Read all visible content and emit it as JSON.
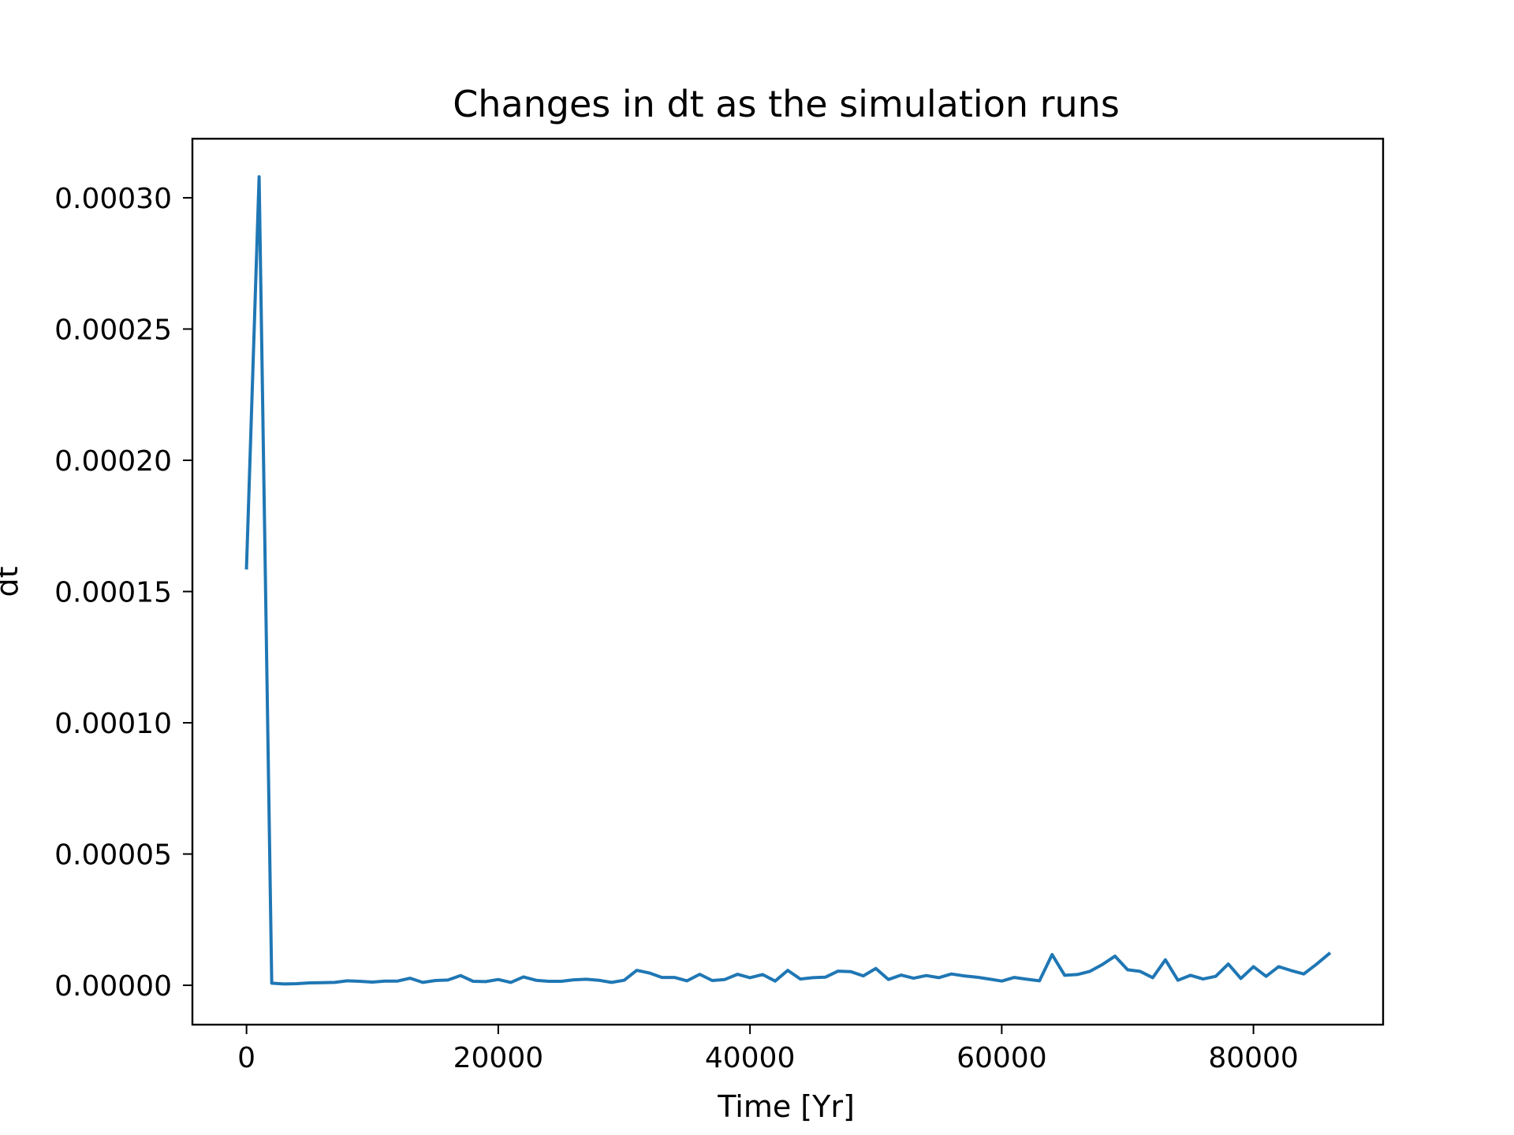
{
  "chart_data": {
    "type": "line",
    "title": "Changes in dt as the simulation runs",
    "xlabel": "Time [Yr]",
    "ylabel": "dt",
    "xlim": [
      -4300,
      90300
    ],
    "ylim": [
      -1.5e-05,
      0.0003225
    ],
    "grid": false,
    "xticks": [
      {
        "value": 0,
        "label": "0"
      },
      {
        "value": 20000,
        "label": "20000"
      },
      {
        "value": 40000,
        "label": "40000"
      },
      {
        "value": 60000,
        "label": "60000"
      },
      {
        "value": 80000,
        "label": "80000"
      }
    ],
    "yticks": [
      {
        "value": 0.0,
        "label": "0.00000"
      },
      {
        "value": 5e-05,
        "label": "0.00005"
      },
      {
        "value": 0.0001,
        "label": "0.00010"
      },
      {
        "value": 0.00015,
        "label": "0.00015"
      },
      {
        "value": 0.0002,
        "label": "0.00020"
      },
      {
        "value": 0.00025,
        "label": "0.00025"
      },
      {
        "value": 0.0003,
        "label": "0.00030"
      }
    ],
    "series": [
      {
        "color": "#1f77b4",
        "x": [
          0,
          1000,
          2000,
          3000,
          4000,
          5000,
          6000,
          7000,
          8000,
          9000,
          10000,
          11000,
          12000,
          13000,
          14000,
          15000,
          16000,
          17000,
          18000,
          19000,
          20000,
          21000,
          22000,
          23000,
          24000,
          25000,
          26000,
          27000,
          28000,
          29000,
          30000,
          31000,
          32000,
          33000,
          34000,
          35000,
          36000,
          37000,
          38000,
          39000,
          40000,
          41000,
          42000,
          43000,
          44000,
          45000,
          46000,
          47000,
          48000,
          49000,
          50000,
          51000,
          52000,
          53000,
          54000,
          55000,
          56000,
          57000,
          58000,
          59000,
          60000,
          61000,
          62000,
          63000,
          64000,
          65000,
          66000,
          67000,
          68000,
          69000,
          70000,
          71000,
          72000,
          73000,
          74000,
          75000,
          76000,
          77000,
          78000,
          79000,
          80000,
          81000,
          82000,
          83000,
          84000,
          85000,
          86000
        ],
        "y": [
          0.000159,
          0.000308,
          8e-07,
          5e-07,
          6e-07,
          9e-07,
          1e-06,
          1.1e-06,
          1.7e-06,
          1.5e-06,
          1.2e-06,
          1.6e-06,
          1.6e-06,
          2.7e-06,
          1.1e-06,
          1.8e-06,
          2e-06,
          3.7e-06,
          1.5e-06,
          1.4e-06,
          2.2e-06,
          1.1e-06,
          3.2e-06,
          1.9e-06,
          1.5e-06,
          1.5e-06,
          2.1e-06,
          2.3e-06,
          1.9e-06,
          1.1e-06,
          1.9e-06,
          5.7e-06,
          4.7e-06,
          3e-06,
          3e-06,
          1.7e-06,
          4.2e-06,
          1.8e-06,
          2.2e-06,
          4.2e-06,
          2.9e-06,
          4.1e-06,
          1.6e-06,
          5.7e-06,
          2.4e-06,
          2.9e-06,
          3.1e-06,
          5.4e-06,
          5.2e-06,
          3.6e-06,
          6.4e-06,
          2.2e-06,
          3.9e-06,
          2.7e-06,
          3.7e-06,
          2.9e-06,
          4.3e-06,
          3.6e-06,
          3.1e-06,
          2.4e-06,
          1.6e-06,
          3e-06,
          2.3e-06,
          1.7e-06,
          1.17e-05,
          3.8e-06,
          4.1e-06,
          5.3e-06,
          7.9e-06,
          1.11e-05,
          5.9e-06,
          5.3e-06,
          2.9e-06,
          9.7e-06,
          1.9e-06,
          3.8e-06,
          2.4e-06,
          3.4e-06,
          8.1e-06,
          2.6e-06,
          7.1e-06,
          3.4e-06,
          7.1e-06,
          5.6e-06,
          4.3e-06,
          8e-06,
          1.2e-05
        ]
      }
    ]
  }
}
